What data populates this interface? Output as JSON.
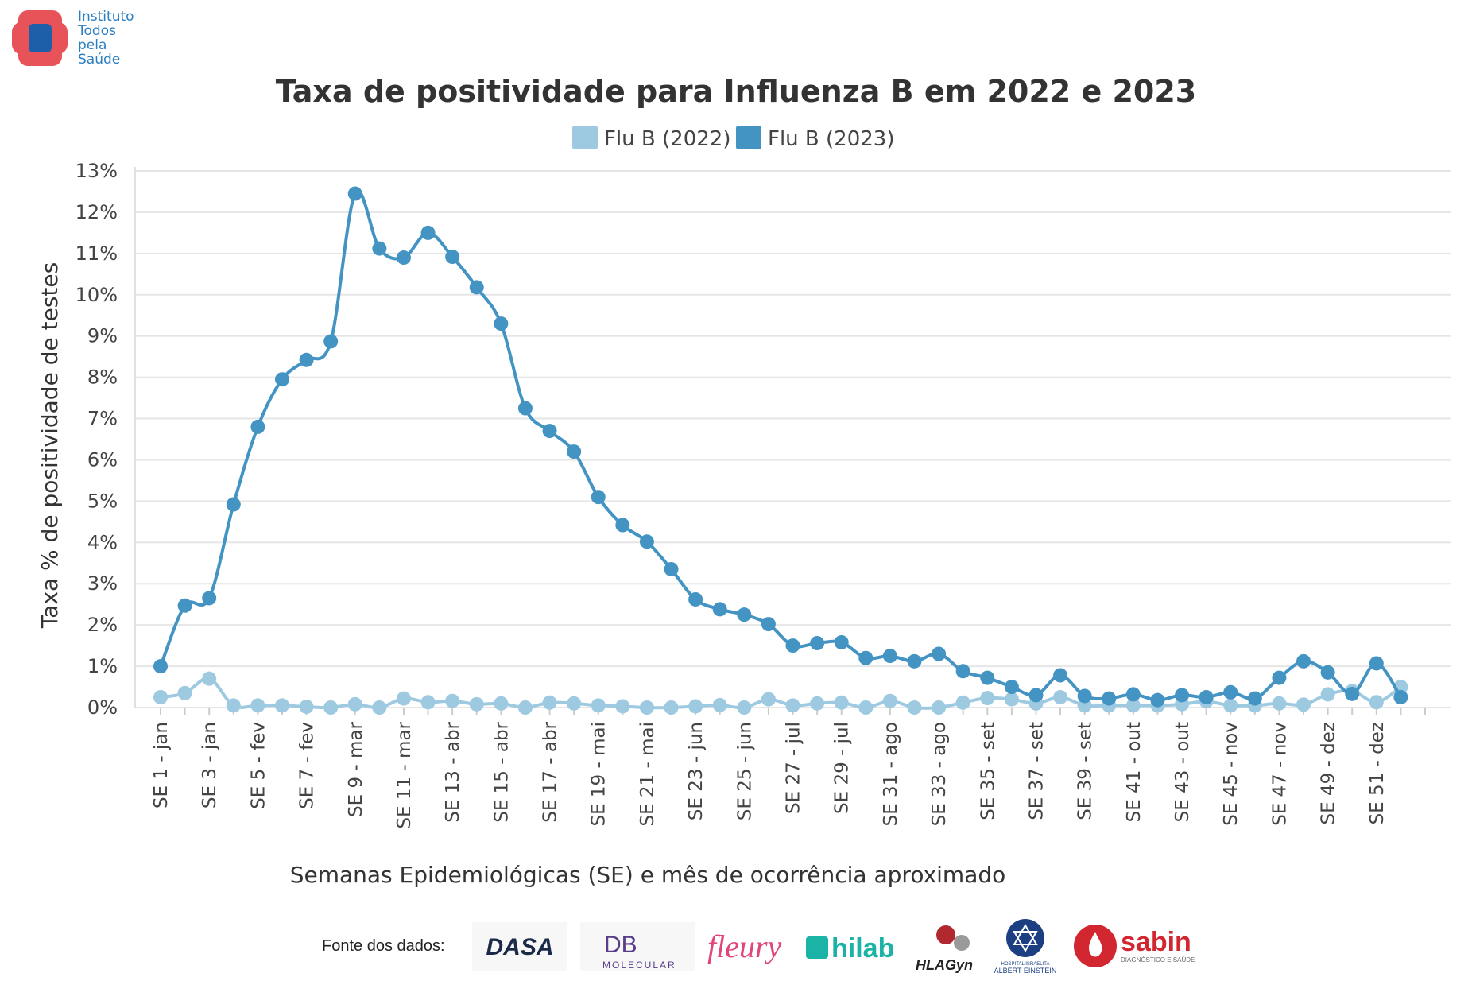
{
  "brand": {
    "name_lines": [
      "Instituto",
      "Todos",
      "pela",
      "Saúde"
    ]
  },
  "chart_data": {
    "type": "line",
    "title": "Taxa de positividade para Influenza B em 2022 e 2023",
    "xlabel": "Semanas Epidemiológicas (SE) e mês de ocorrência aproximado",
    "ylabel": "Taxa % de positividade de testes",
    "ylim": [
      0,
      13
    ],
    "yticks": [
      "0%",
      "1%",
      "2%",
      "3%",
      "4%",
      "5%",
      "6%",
      "7%",
      "8%",
      "9%",
      "10%",
      "11%",
      "12%",
      "13%"
    ],
    "x_tick_labels": [
      "SE 1 - jan",
      "SE 3 - jan",
      "SE 5 - fev",
      "SE 7 - fev",
      "SE 9 - mar",
      "SE 11 - mar",
      "SE 13 - abr",
      "SE 15 - abr",
      "SE 17 - abr",
      "SE 19 - mai",
      "SE 21 - mai",
      "SE 23 - jun",
      "SE 25 - jun",
      "SE 27 - jul",
      "SE 29 - jul",
      "SE 31 - ago",
      "SE 33 - ago",
      "SE 35 - set",
      "SE 37 - set",
      "SE 39 - set",
      "SE 41 - out",
      "SE 43 - out",
      "SE 45 - nov",
      "SE 47 - nov",
      "SE 49 - dez",
      "SE 51 - dez"
    ],
    "weeks": 53,
    "legend_position": "top-center",
    "grid": true,
    "series": [
      {
        "name": "Flu B (2022)",
        "color": "#9ecae1",
        "values": [
          0.25,
          0.35,
          0.7,
          0.05,
          0.05,
          0.05,
          0.02,
          0.0,
          0.08,
          0.0,
          0.22,
          0.13,
          0.16,
          0.08,
          0.1,
          0.0,
          0.12,
          0.1,
          0.05,
          0.03,
          0.0,
          0.0,
          0.03,
          0.06,
          0.0,
          0.2,
          0.05,
          0.1,
          0.12,
          0.0,
          0.16,
          0.0,
          0.0,
          0.12,
          0.23,
          0.2,
          0.1,
          0.25,
          0.05,
          0.05,
          0.05,
          0.05,
          0.08,
          0.15,
          0.05,
          0.05,
          0.1,
          0.07,
          0.32,
          0.4,
          0.13,
          0.5
        ]
      },
      {
        "name": "Flu B (2023)",
        "color": "#4393c3",
        "values": [
          1.0,
          2.47,
          2.65,
          4.92,
          6.8,
          7.95,
          8.42,
          8.87,
          12.45,
          11.12,
          10.9,
          11.5,
          10.92,
          10.18,
          9.3,
          7.25,
          6.7,
          6.2,
          5.1,
          4.42,
          4.02,
          3.35,
          2.62,
          2.38,
          2.25,
          2.02,
          1.5,
          1.56,
          1.58,
          1.2,
          1.25,
          1.12,
          1.3,
          0.88,
          0.72,
          0.5,
          0.3,
          0.78,
          0.28,
          0.22,
          0.32,
          0.18,
          0.3,
          0.25,
          0.37,
          0.22,
          0.72,
          1.12,
          0.85,
          0.33,
          1.07,
          0.25
        ]
      }
    ]
  },
  "footer": {
    "source_label": "Fonte dos dados:",
    "logos": [
      {
        "name": "dasa",
        "text": "DASA",
        "color": "#1c2a4a"
      },
      {
        "name": "db-molecular",
        "text": "DB",
        "subtext": "MOLECULAR",
        "color": "#5a3d8a"
      },
      {
        "name": "fleury",
        "text": "fleury",
        "color": "#e0457b"
      },
      {
        "name": "hilab",
        "text": "hilab",
        "color": "#1bb3a6"
      },
      {
        "name": "hlagyn",
        "text": "HLAGyn",
        "color": "#b1282f"
      },
      {
        "name": "einstein",
        "text": "ALBERT EINSTEIN",
        "subtext": "HOSPITAL ISRAELITA",
        "color": "#1c3f82"
      },
      {
        "name": "sabin",
        "text": "sabin",
        "subtext": "DIAGNÓSTICO E SAÚDE",
        "color": "#d22630"
      }
    ]
  }
}
